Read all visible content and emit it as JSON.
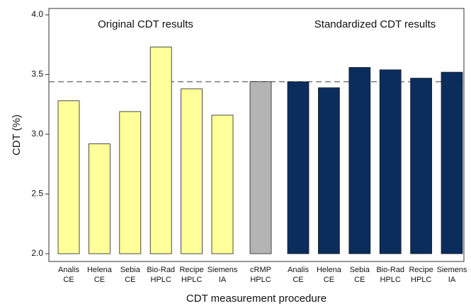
{
  "chart_data": {
    "type": "bar",
    "y_label": "CDT (%)",
    "x_label": "CDT measurement procedure",
    "ylim": [
      2.0,
      4.0
    ],
    "yticks": [
      {
        "value": 2,
        "label": "2.0"
      },
      {
        "value": 2.5,
        "label": "2.5"
      },
      {
        "value": 3,
        "label": "3.0"
      },
      {
        "value": 3.5,
        "label": "3.5"
      },
      {
        "value": 4,
        "label": "4.0"
      }
    ],
    "reference_line": 3.44,
    "series": [
      {
        "name": "Original CDT results",
        "color": "#ffff99",
        "categories": [
          "Analis\nCE",
          "Helena\nCE",
          "Sebia\nCE",
          "Bio-Rad\nHPLC",
          "Recipe\nHPLC",
          "Siemens\nIA"
        ],
        "values": [
          3.28,
          2.92,
          3.19,
          3.73,
          3.38,
          3.16
        ]
      },
      {
        "color": "#b4b4b4",
        "categories": [
          "cRMP\nHPLC"
        ],
        "values": [
          3.44
        ]
      },
      {
        "name": "Standardized CDT results",
        "color": "#0a2d5e",
        "categories": [
          "Analis\nCE",
          "Helena\nCE",
          "Sebia\nCE",
          "Bio-Rad\nHPLC",
          "Recipe\nHPLC",
          "Siemens\nIA"
        ],
        "values": [
          3.44,
          3.39,
          3.56,
          3.54,
          3.47,
          3.52
        ]
      }
    ]
  }
}
